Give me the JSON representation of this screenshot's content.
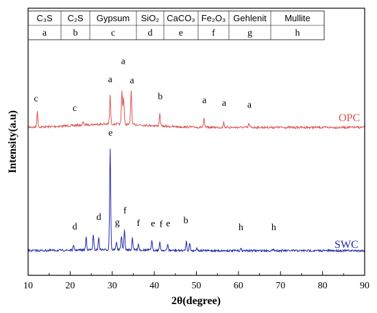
{
  "chart_data": {
    "type": "line",
    "xlabel": "2θ(degree)",
    "ylabel": "Intensity(a.u)",
    "xlim": [
      10,
      90
    ],
    "x_ticks": [
      "10",
      "20",
      "30",
      "40",
      "50",
      "60",
      "70",
      "80",
      "90"
    ],
    "legend_table": {
      "phases": [
        "C₃S",
        "C₂S",
        "Gypsum",
        "SiO₂",
        "CaCO₃",
        "Fe₂O₃",
        "Gehlenit",
        "Mullite"
      ],
      "codes": [
        "a",
        "b",
        "c",
        "d",
        "e",
        "f",
        "g",
        "h"
      ]
    },
    "series": [
      {
        "name": "OPC",
        "color": "#d9534f",
        "baseline": 0.18,
        "peaks": [
          [
            12.2,
            0.2
          ],
          [
            23.1,
            0.04
          ],
          [
            29.5,
            0.38
          ],
          [
            32.3,
            0.44
          ],
          [
            32.7,
            0.36
          ],
          [
            34.5,
            0.45
          ],
          [
            41.3,
            0.16
          ],
          [
            51.8,
            0.11
          ],
          [
            56.5,
            0.07
          ],
          [
            62.5,
            0.05
          ]
        ],
        "annotations": [
          {
            "x": 11.9,
            "label": "c"
          },
          {
            "x": 21.1,
            "label": "c"
          },
          {
            "x": 29.5,
            "label": "a"
          },
          {
            "x": 32.6,
            "label": "a"
          },
          {
            "x": 34.7,
            "label": "a"
          },
          {
            "x": 41.4,
            "label": "b"
          },
          {
            "x": 51.9,
            "label": "a"
          },
          {
            "x": 56.6,
            "label": "a"
          },
          {
            "x": 62.6,
            "label": "a"
          }
        ]
      },
      {
        "name": "SWC",
        "color": "#1f24a8",
        "baseline": 0.04,
        "peaks": [
          [
            20.8,
            0.04
          ],
          [
            23.8,
            0.13
          ],
          [
            25.5,
            0.14
          ],
          [
            26.8,
            0.12
          ],
          [
            29.5,
            1.0
          ],
          [
            31.0,
            0.08
          ],
          [
            32.2,
            0.14
          ],
          [
            32.9,
            0.19
          ],
          [
            34.8,
            0.12
          ],
          [
            36.2,
            0.06
          ],
          [
            39.4,
            0.09
          ],
          [
            41.3,
            0.08
          ],
          [
            43.2,
            0.06
          ],
          [
            47.6,
            0.09
          ],
          [
            48.4,
            0.07
          ],
          [
            50.1,
            0.03
          ],
          [
            60.6,
            0.02
          ],
          [
            68.4,
            0.02
          ]
        ],
        "annotations": [
          {
            "x": 21.1,
            "label": "d"
          },
          {
            "x": 26.8,
            "label": "d"
          },
          {
            "x": 29.6,
            "label": "e"
          },
          {
            "x": 31.2,
            "label": "g"
          },
          {
            "x": 33.0,
            "label": "f"
          },
          {
            "x": 36.2,
            "label": "f"
          },
          {
            "x": 39.7,
            "label": "e"
          },
          {
            "x": 41.6,
            "label": "f"
          },
          {
            "x": 43.3,
            "label": "e"
          },
          {
            "x": 47.5,
            "label": "b"
          },
          {
            "x": 60.6,
            "label": "h"
          },
          {
            "x": 68.4,
            "label": "h"
          }
        ]
      }
    ]
  }
}
